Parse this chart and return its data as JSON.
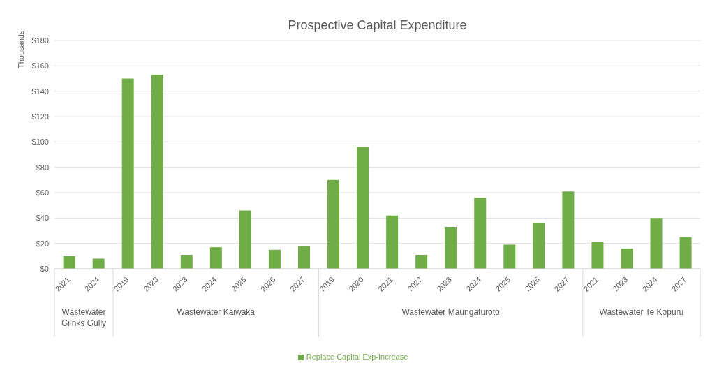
{
  "chart_data": {
    "type": "bar",
    "title": "Prospective Capital Expenditure",
    "ylabel": "Thousands",
    "categories": [
      "2021",
      "2024",
      "2019",
      "2020",
      "2023",
      "2024",
      "2025",
      "2026",
      "2027",
      "2019",
      "2020",
      "2021",
      "2022",
      "2023",
      "2024",
      "2025",
      "2026",
      "2027",
      "2021",
      "2023",
      "2024",
      "2027"
    ],
    "annotations": [
      "Wastewater Gilnks Gully",
      "Wastewater Kaiwaka",
      "Wastewater Maungaturoto",
      "Wastewater Te Kopuru"
    ],
    "series": [
      {
        "name": "Replace Capital Exp-Increase",
        "color": "#70ad47",
        "values": [
          10,
          8,
          150,
          153,
          11,
          17,
          46,
          15,
          18,
          70,
          96,
          42,
          11,
          33,
          56,
          19,
          36,
          61,
          21,
          16,
          40,
          25
        ]
      }
    ],
    "ylim": [
      0,
      180
    ],
    "yticks": [
      {
        "value": 0,
        "label": "$0"
      },
      {
        "value": 20,
        "label": "$20"
      },
      {
        "value": 40,
        "label": "$40"
      },
      {
        "value": 60,
        "label": "$60"
      },
      {
        "value": 80,
        "label": "$80"
      },
      {
        "value": 100,
        "label": "$100"
      },
      {
        "value": 120,
        "label": "$120"
      },
      {
        "value": 140,
        "label": "$140"
      },
      {
        "value": 160,
        "label": "$160"
      },
      {
        "value": 180,
        "label": "$180"
      }
    ],
    "grid": "y",
    "legend": "bottom"
  }
}
